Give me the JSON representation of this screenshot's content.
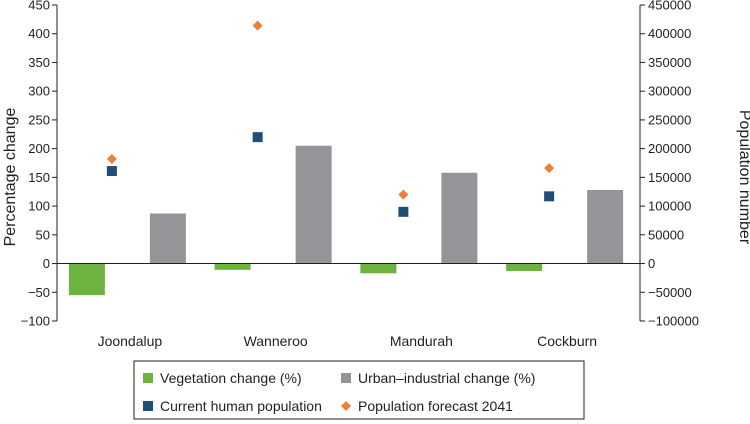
{
  "chart_data": {
    "type": "bar",
    "categories": [
      "Joondalup",
      "Wanneroo",
      "Mandurah",
      "Cockburn"
    ],
    "left_axis": {
      "label": "Percentage change",
      "ylim": [
        -100,
        450
      ],
      "ticks": [
        -100,
        -50,
        0,
        50,
        100,
        150,
        200,
        250,
        300,
        350,
        400,
        450
      ],
      "tick_labels": [
        "−100",
        "−50",
        "0",
        "50",
        "100",
        "150",
        "200",
        "250",
        "300",
        "350",
        "400",
        "450"
      ]
    },
    "right_axis": {
      "label": "Population number",
      "ylim": [
        -100000,
        450000
      ],
      "ticks": [
        -100000,
        -50000,
        0,
        50000,
        100000,
        150000,
        200000,
        250000,
        300000,
        350000,
        400000,
        450000
      ],
      "tick_labels": [
        "−100000",
        "−50000",
        "0",
        "50000",
        "100000",
        "150000",
        "200000",
        "250000",
        "300000",
        "350000",
        "400000",
        "450000"
      ]
    },
    "series": [
      {
        "name": "Vegetation change (%)",
        "kind": "bar",
        "axis": "left",
        "color": "#6db33f",
        "values": [
          -55,
          -11,
          -17,
          -13
        ]
      },
      {
        "name": "Urban–industrial change (%)",
        "kind": "bar",
        "axis": "left",
        "color": "#939598",
        "values": [
          87,
          205,
          158,
          128
        ]
      },
      {
        "name": "Current human population",
        "kind": "scatter",
        "marker": "square",
        "axis": "right",
        "color": "#1f4e79",
        "values": [
          161000,
          220000,
          90000,
          117000
        ]
      },
      {
        "name": "Population forecast 2041",
        "kind": "scatter",
        "marker": "diamond",
        "axis": "right",
        "color": "#e8823a",
        "values": [
          182000,
          414000,
          120000,
          166000
        ]
      }
    ],
    "legend_position": "bottom",
    "grid": false
  }
}
